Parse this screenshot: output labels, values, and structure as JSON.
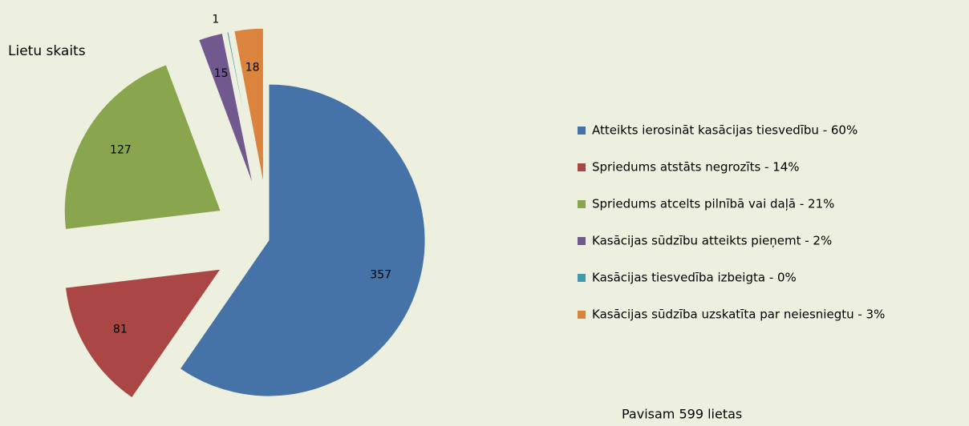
{
  "chart_data": {
    "type": "pie",
    "title": "Lietu skaits",
    "categories": [
      "Atteikts ierosināt kasācijas tiesvedību - 60%",
      "Spriedums atstāts negrozīts - 14%",
      "Spriedums atcelts pilnībā vai daļā - 21%",
      "Kasācijas sūdzību atteikts pieņemt - 2%",
      "Kasācijas tiesvedība izbeigta - 0%",
      "Kasācijas sūdzība uzskatīta par neiesniegtu - 3%"
    ],
    "values": [
      357,
      81,
      127,
      15,
      1,
      18
    ],
    "colors": [
      "#4572a7",
      "#aa4643",
      "#89a54e",
      "#71588f",
      "#4198af",
      "#db843d"
    ],
    "explode": [
      false,
      true,
      true,
      true,
      true,
      true
    ],
    "legend": "right",
    "footnote": "Pavisam 599 lietas"
  }
}
